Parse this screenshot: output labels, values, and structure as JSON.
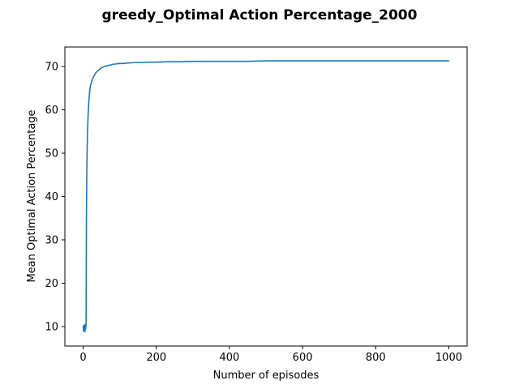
{
  "chart_data": {
    "type": "line",
    "title": "greedy_Optimal Action Percentage_2000",
    "xlabel": "Number of episodes",
    "ylabel": "Mean Optimal Action Percentage",
    "xlim": [
      -50,
      1050
    ],
    "ylim": [
      5.5,
      74.5
    ],
    "xticks": [
      0,
      200,
      400,
      600,
      800,
      1000
    ],
    "yticks": [
      10,
      20,
      30,
      40,
      50,
      60,
      70
    ],
    "grid": false,
    "legend": "none",
    "line_color": "#1f77b4",
    "series": [
      {
        "x": [
          0,
          1,
          2,
          3,
          4,
          5,
          6,
          7,
          8,
          9,
          10,
          11,
          12,
          13,
          14,
          15,
          16,
          17,
          18,
          20,
          22,
          25,
          28,
          31,
          35,
          40,
          45,
          50,
          55,
          60,
          65,
          70,
          75,
          80,
          90,
          100,
          110,
          120,
          140,
          160,
          180,
          200,
          230,
          260,
          300,
          350,
          400,
          450,
          500,
          550,
          600,
          650,
          700,
          750,
          800,
          850,
          900,
          950,
          1000
        ],
        "y": [
          10.1,
          8.9,
          10.2,
          9.2,
          10.4,
          8.8,
          10.5,
          9.5,
          10.8,
          35.0,
          46.0,
          51.5,
          55.0,
          57.5,
          59.5,
          61.0,
          62.5,
          63.5,
          64.5,
          65.5,
          66.2,
          67.0,
          67.6,
          68.0,
          68.6,
          69.0,
          69.4,
          69.7,
          69.9,
          70.1,
          70.1,
          70.3,
          70.3,
          70.5,
          70.6,
          70.7,
          70.7,
          70.8,
          70.9,
          70.9,
          71.0,
          71.0,
          71.1,
          71.1,
          71.2,
          71.2,
          71.2,
          71.2,
          71.3,
          71.3,
          71.3,
          71.3,
          71.3,
          71.3,
          71.3,
          71.3,
          71.3,
          71.3,
          71.3
        ]
      }
    ]
  }
}
